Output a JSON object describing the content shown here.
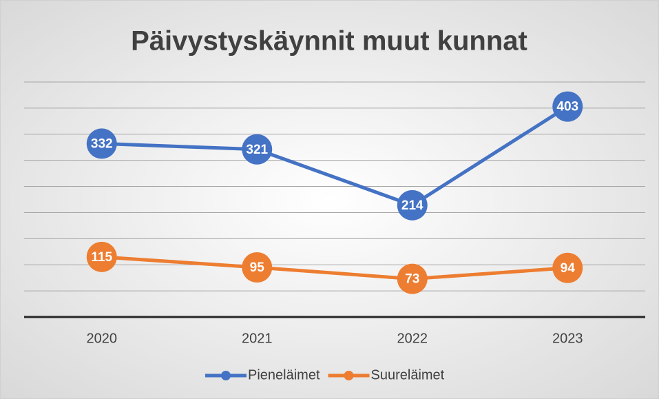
{
  "chart_data": {
    "type": "line",
    "title": "Päivystyskäynnit muut kunnat",
    "categories": [
      "2020",
      "2021",
      "2022",
      "2023"
    ],
    "series": [
      {
        "name": "Pieneläimet",
        "color": "#4472c4",
        "values": [
          332,
          321,
          214,
          403
        ]
      },
      {
        "name": "Suureläimet",
        "color": "#ed7d31",
        "values": [
          115,
          95,
          73,
          94
        ]
      }
    ],
    "ylim": [
      0,
      450
    ],
    "yticks": [
      0,
      50,
      100,
      150,
      200,
      250,
      300,
      350,
      400,
      450
    ],
    "grid": true,
    "legend": "bottom"
  }
}
